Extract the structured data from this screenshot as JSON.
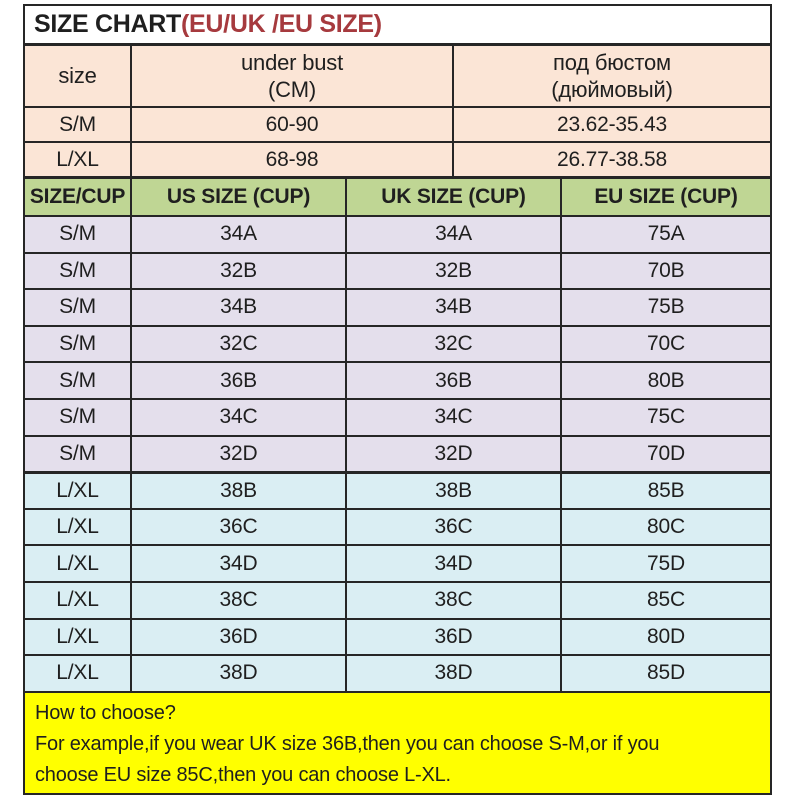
{
  "title": {
    "black": "SIZE CHART",
    "red": "(EU/UK /EU SIZE)"
  },
  "band_table": {
    "header": {
      "size": "size",
      "under_bust_line1": "under bust",
      "under_bust_line2": "(CM)",
      "russian_line1": "под бюстом",
      "russian_line2": "(дюймовый)"
    },
    "rows": [
      {
        "size": "S/M",
        "cm": "60-90",
        "inch": "23.62-35.43"
      },
      {
        "size": "L/XL",
        "cm": "68-98",
        "inch": "26.77-38.58"
      }
    ]
  },
  "cup_table": {
    "header": [
      "SIZE/CUP",
      "US SIZE (CUP)",
      "UK SIZE (CUP)",
      "EU SIZE (CUP)"
    ],
    "rows": [
      {
        "size": "S/M",
        "us": "34A",
        "uk": "34A",
        "eu": "75A"
      },
      {
        "size": "S/M",
        "us": "32B",
        "uk": "32B",
        "eu": "70B"
      },
      {
        "size": "S/M",
        "us": "34B",
        "uk": "34B",
        "eu": "75B"
      },
      {
        "size": "S/M",
        "us": "32C",
        "uk": "32C",
        "eu": "70C"
      },
      {
        "size": "S/M",
        "us": "36B",
        "uk": "36B",
        "eu": "80B"
      },
      {
        "size": "S/M",
        "us": "34C",
        "uk": "34C",
        "eu": "75C"
      },
      {
        "size": "S/M",
        "us": "32D",
        "uk": "32D",
        "eu": "70D"
      },
      {
        "size": "L/XL",
        "us": "38B",
        "uk": "38B",
        "eu": "85B"
      },
      {
        "size": "L/XL",
        "us": "36C",
        "uk": "36C",
        "eu": "80C"
      },
      {
        "size": "L/XL",
        "us": "34D",
        "uk": "34D",
        "eu": "75D"
      },
      {
        "size": "L/XL",
        "us": "38C",
        "uk": "38C",
        "eu": "85C"
      },
      {
        "size": "L/XL",
        "us": "36D",
        "uk": "36D",
        "eu": "80D"
      },
      {
        "size": "L/XL",
        "us": "38D",
        "uk": "38D",
        "eu": "85D"
      }
    ]
  },
  "footer": {
    "lines": [
      "How to choose?",
      "For example,if you wear UK size 36B,then you can choose S-M,or if you",
      "choose EU size 85C,then you can choose L-XL."
    ]
  },
  "colors": {
    "peach": "#FBE5D6",
    "green": "#BFD694",
    "lavender": "#E4DFEC",
    "light-blue": "#DAEEF3",
    "yellow": "#FFFF00",
    "title-red": "#A63A3E",
    "border": "#262626",
    "text": "#1F1F1F"
  }
}
